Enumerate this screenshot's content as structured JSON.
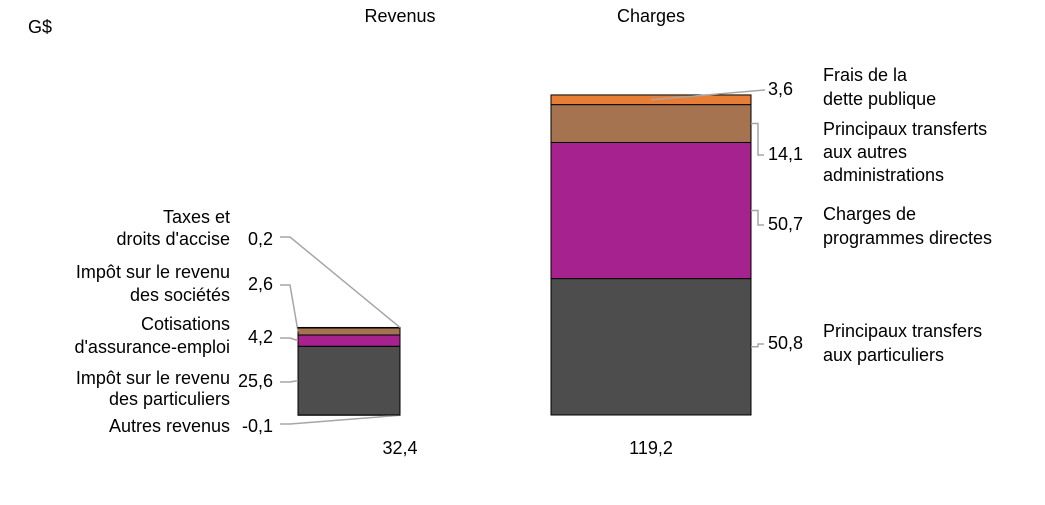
{
  "chart_data": {
    "type": "stacked-bar",
    "unit": "G$",
    "bars": [
      {
        "category": "Revenus",
        "total": 32.4,
        "total_label": "32,4",
        "segments": [
          {
            "name": [
              "Autres revenus"
            ],
            "value": -0.1,
            "value_label": "-0,1",
            "color": "#3a3a3a"
          },
          {
            "name": [
              "Impôt sur le revenu",
              "des particuliers"
            ],
            "value": 25.6,
            "value_label": "25,6",
            "color": "#4d4d4d"
          },
          {
            "name": [
              "Cotisations",
              "d'assurance-emploi"
            ],
            "value": 4.2,
            "value_label": "4,2",
            "color": "#a6228f"
          },
          {
            "name": [
              "Impôt sur le revenu",
              "des sociétés"
            ],
            "value": 2.6,
            "value_label": "2,6",
            "color": "#a57350"
          },
          {
            "name": [
              "Taxes et",
              "droits d'accise"
            ],
            "value": 0.2,
            "value_label": "0,2",
            "color": "#e87d35"
          }
        ]
      },
      {
        "category": "Charges",
        "total": 119.2,
        "total_label": "119,2",
        "segments": [
          {
            "name": [
              "Principaux transfers",
              "aux particuliers"
            ],
            "value": 50.8,
            "value_label": "50,8",
            "color": "#4d4d4d"
          },
          {
            "name": [
              "Charges de",
              "programmes directes"
            ],
            "value": 50.7,
            "value_label": "50,7",
            "color": "#a6228f"
          },
          {
            "name": [
              "Principaux transferts",
              "aux autres",
              "administrations"
            ],
            "value": 14.1,
            "value_label": "14,1",
            "color": "#a57350"
          },
          {
            "name": [
              "Frais de la",
              "dette publique"
            ],
            "value": 3.6,
            "value_label": "3,6",
            "color": "#e87d35"
          }
        ]
      }
    ]
  }
}
